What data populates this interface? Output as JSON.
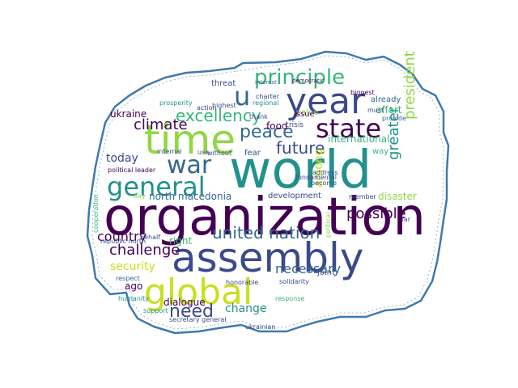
{
  "outline_color": "#3e7ab0",
  "palette": {
    "dark_purple": "#440154",
    "indigo": "#3b4a8a",
    "slate": "#31688e",
    "teal": "#21918c",
    "green": "#35b779",
    "lime": "#90d743",
    "yellow": "#c8e020"
  },
  "words": [
    {
      "text": "organization",
      "color": "#440154"
    },
    {
      "text": "world",
      "color": "#21918c"
    },
    {
      "text": "assembly",
      "color": "#3b4a8a"
    },
    {
      "text": "year",
      "color": "#3b4a8a"
    },
    {
      "text": "time",
      "color": "#90d743"
    },
    {
      "text": "global",
      "color": "#c8e020"
    },
    {
      "text": "state",
      "color": "#440154"
    },
    {
      "text": "general",
      "color": "#21918c"
    },
    {
      "text": "war",
      "color": "#31688e"
    },
    {
      "text": "u",
      "color": "#31688e"
    },
    {
      "text": "principle",
      "color": "#35b779"
    },
    {
      "text": "peace",
      "color": "#31688e"
    },
    {
      "text": "future",
      "color": "#3b4a8a"
    },
    {
      "text": "excellency",
      "color": "#35b779"
    },
    {
      "text": "united nation",
      "color": "#31688e"
    },
    {
      "text": "climate",
      "color": "#440154"
    },
    {
      "text": "need",
      "color": "#3b4a8a"
    },
    {
      "text": "possible",
      "color": "#440154"
    },
    {
      "text": "president",
      "color": "#90d743"
    },
    {
      "text": "challenge",
      "color": "#440154"
    },
    {
      "text": "country",
      "color": "#440154"
    },
    {
      "text": "security",
      "color": "#c8e020"
    },
    {
      "text": "necessary",
      "color": "#31688e"
    },
    {
      "text": "greater",
      "color": "#21918c"
    },
    {
      "text": "today",
      "color": "#3b4a8a"
    },
    {
      "text": "change",
      "color": "#21918c"
    },
    {
      "text": "dialogue",
      "color": "#440154"
    },
    {
      "text": "international",
      "color": "#35b779"
    },
    {
      "text": "north macedonia",
      "color": "#31688e"
    },
    {
      "text": "development",
      "color": "#3b4a8a"
    },
    {
      "text": "disaster",
      "color": "#90d743"
    },
    {
      "text": "ukraine",
      "color": "#440154"
    },
    {
      "text": "food",
      "color": "#440154"
    },
    {
      "text": "threat",
      "color": "#3b4a8a"
    },
    {
      "text": "effort",
      "color": "#35b779"
    },
    {
      "text": "already",
      "color": "#31688e"
    },
    {
      "text": "among",
      "color": "#c8e020"
    },
    {
      "text": "fear",
      "color": "#3b4a8a"
    },
    {
      "text": "value",
      "color": "#90d743"
    },
    {
      "text": "issue",
      "color": "#440154"
    },
    {
      "text": "crisis",
      "color": "#3b4a8a"
    },
    {
      "text": "charter",
      "color": "#3b4a8a"
    },
    {
      "text": "regional",
      "color": "#21918c"
    },
    {
      "text": "biggest",
      "color": "#440154"
    },
    {
      "text": "provide",
      "color": "#31688e"
    },
    {
      "text": "way",
      "color": "#35b779"
    },
    {
      "text": "joint",
      "color": "#3b4a8a"
    },
    {
      "text": "right",
      "color": "#35b779"
    },
    {
      "text": "ago",
      "color": "#440154"
    },
    {
      "text": "respect",
      "color": "#31688e"
    },
    {
      "text": "behalf",
      "color": "#3b4a8a"
    },
    {
      "text": "republic north",
      "color": "#3b4a8a"
    },
    {
      "text": "political leader",
      "color": "#440154"
    },
    {
      "text": "internal",
      "color": "#3b4a8a"
    },
    {
      "text": "use",
      "color": "#3b4a8a"
    },
    {
      "text": "without",
      "color": "#3b4a8a"
    },
    {
      "text": "fundamental",
      "color": "#3b4a8a"
    },
    {
      "text": "interest",
      "color": "#31688e"
    },
    {
      "text": "democratic",
      "color": "#440154"
    },
    {
      "text": "solidarity",
      "color": "#3b4a8a"
    },
    {
      "text": "address",
      "color": "#3b4a8a"
    },
    {
      "text": "become",
      "color": "#3b4a8a"
    },
    {
      "text": "member",
      "color": "#3b4a8a"
    },
    {
      "text": "response",
      "color": "#35b779"
    },
    {
      "text": "support",
      "color": "#21918c"
    },
    {
      "text": "secretary general",
      "color": "#3b4a8a"
    },
    {
      "text": "ukrainian",
      "color": "#3b4a8a"
    },
    {
      "text": "humanity",
      "color": "#21918c"
    },
    {
      "text": "cooperation",
      "color": "#35b779"
    },
    {
      "text": "prosperity",
      "color": "#21918c"
    },
    {
      "text": "highest",
      "color": "#3b4a8a"
    },
    {
      "text": "action",
      "color": "#3b4a8a"
    },
    {
      "text": "thank",
      "color": "#3b4a8a"
    },
    {
      "text": "political",
      "color": "#90d743"
    },
    {
      "text": "honorable",
      "color": "#3b4a8a"
    },
    {
      "text": "day",
      "color": "#90d743"
    },
    {
      "text": "far",
      "color": "#3b4a8a"
    },
    {
      "text": "must",
      "color": "#3b4a8a"
    }
  ]
}
